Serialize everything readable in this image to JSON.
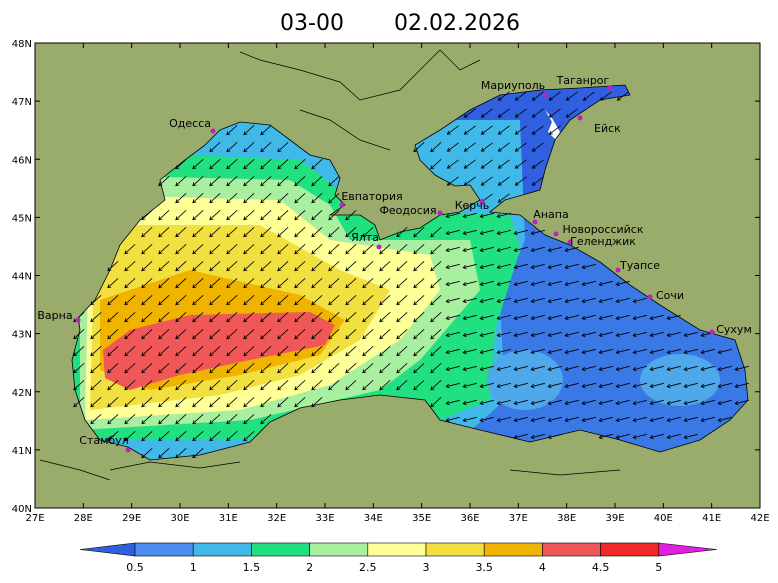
{
  "header": {
    "time": "03-00",
    "date": "02.02.2026"
  },
  "map": {
    "lat_labels": [
      "48N",
      "47N",
      "46N",
      "45N",
      "44N",
      "43N",
      "42N",
      "41N",
      "40N"
    ],
    "lon_labels": [
      "27E",
      "28E",
      "29E",
      "30E",
      "31E",
      "32E",
      "33E",
      "34E",
      "35E",
      "36E",
      "37E",
      "38E",
      "39E",
      "40E",
      "41E",
      "42E"
    ],
    "cities": [
      "Одесса",
      "Мариуполь",
      "Таганрог",
      "Ейск",
      "Евпатория",
      "Феодосия",
      "Керчь",
      "Анапа",
      "Новороссийск",
      "Геленджик",
      "Туапсе",
      "Сочи",
      "Сухум",
      "Ялта",
      "Варна",
      "Стамбул"
    ],
    "land_color": "#9aac6c"
  },
  "legend": {
    "labels": [
      0.5,
      1,
      1.5,
      2,
      2.5,
      3,
      3.5,
      4,
      4.5,
      5
    ],
    "colors": [
      "#3060e0",
      "#4a8ef0",
      "#40b8e8",
      "#20e080",
      "#a8f0a0",
      "#ffff98",
      "#f2e040",
      "#f0b400",
      "#f05858",
      "#f02828",
      "#e020e0"
    ]
  }
}
